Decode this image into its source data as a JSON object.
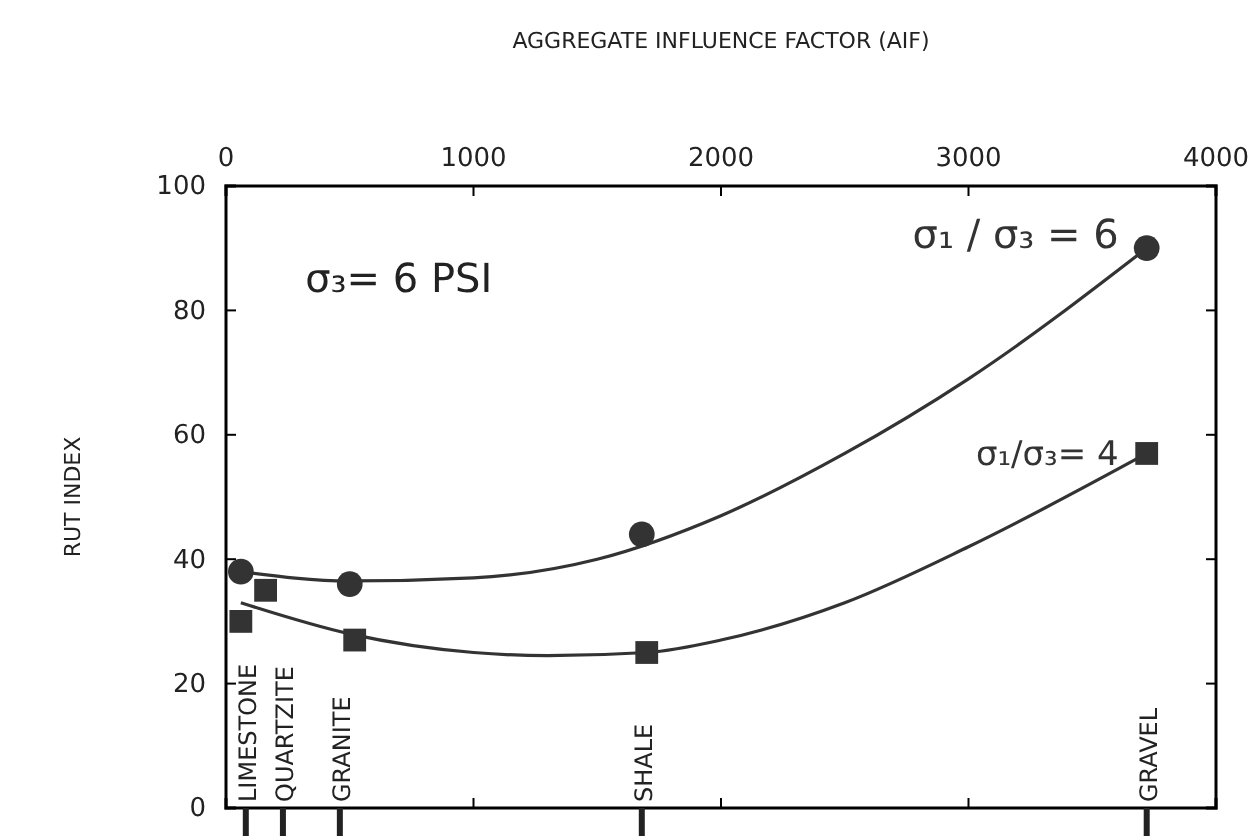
{
  "chart_data": {
    "type": "scatter",
    "xlabel": "AGGREGATE INFLUENCE FACTOR (AIF)",
    "ylabel": "RUT INDEX",
    "xlim": [
      0,
      4000
    ],
    "xticks": [
      0,
      1000,
      2000,
      3000,
      4000
    ],
    "ylim": [
      0,
      100
    ],
    "yticks": [
      0,
      20,
      40,
      60,
      80,
      100
    ],
    "grid": false,
    "legend": false,
    "series": [
      {
        "name": "σ₁ / σ₃ = 6",
        "marker": "circle",
        "color": "#333333",
        "x": [
          60,
          500,
          1680,
          3720
        ],
        "values": [
          38,
          36,
          44,
          90
        ]
      },
      {
        "name": "σ₁/σ₃= 4",
        "marker": "square",
        "color": "#333333",
        "x": [
          60,
          160,
          520,
          1700,
          3720
        ],
        "values": [
          30,
          35,
          27,
          25,
          57
        ]
      },
      {
        "type": "line",
        "color": "#333333",
        "x": [
          60,
          500,
          1000,
          1500,
          2000,
          2500,
          3000,
          3720
        ],
        "values": [
          38,
          36.5,
          37,
          40,
          47,
          57,
          69,
          90
        ]
      },
      {
        "type": "line",
        "color": "#333333",
        "x": [
          60,
          500,
          1000,
          1300,
          1700,
          2000,
          2500,
          3000,
          3720
        ],
        "values": [
          33,
          28,
          25,
          24.5,
          25,
          27,
          33,
          42,
          57
        ]
      }
    ],
    "annotations": [
      "σ₃= 6 PSI"
    ],
    "ref_lines": [
      {
        "axis": "x",
        "value": 80,
        "label": "LIMESTONE"
      },
      {
        "axis": "x",
        "value": 230,
        "label": "QUARTZITE"
      },
      {
        "axis": "x",
        "value": 460,
        "label": "GRANITE"
      },
      {
        "axis": "x",
        "value": 1680,
        "label": "SHALE"
      },
      {
        "axis": "x",
        "value": 3720,
        "label": "GRAVEL"
      }
    ]
  }
}
